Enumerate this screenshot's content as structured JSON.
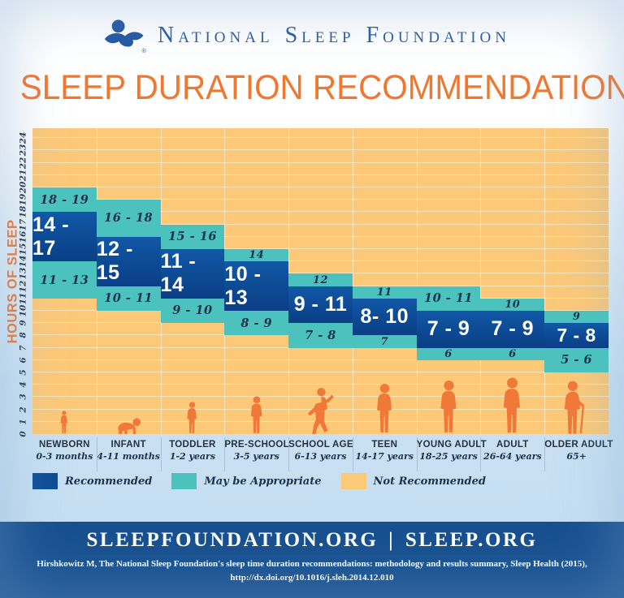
{
  "header": {
    "brand": "National Sleep Foundation",
    "registered_mark": "®",
    "logo_icon": "sleeping-figure-logo"
  },
  "title": "SLEEP DURATION RECOMMENDATIONS",
  "chart_data": {
    "type": "bar",
    "title": "SLEEP DURATION RECOMMENDATIONS",
    "ylabel": "HOURS OF SLEEP",
    "ylim": [
      0,
      24.8
    ],
    "grid": true,
    "hour_ticks": [
      0,
      1,
      2,
      3,
      4,
      5,
      6,
      7,
      8,
      9,
      10,
      11,
      12,
      13,
      14,
      15,
      16,
      17,
      18,
      19,
      20,
      21,
      22,
      23,
      24
    ],
    "legend_position": "bottom-left",
    "legend": [
      {
        "label": "Recommended",
        "color": "#0D4C96"
      },
      {
        "label": "May be Appropriate",
        "color": "#4BC2BD"
      },
      {
        "label": "Not Recommended",
        "color": "#FCC978"
      }
    ],
    "groups": [
      {
        "name": "NEWBORN",
        "age": "0-3 months",
        "figure": "newborn-baby",
        "recommended": {
          "label": "14 - 17",
          "span": [
            14,
            18
          ]
        },
        "may_upper": {
          "label": "18 - 19",
          "span": [
            18,
            20
          ]
        },
        "may_lower": {
          "label": "11 - 13",
          "span": [
            11,
            14
          ]
        }
      },
      {
        "name": "INFANT",
        "age": "4-11 months",
        "figure": "crawling-infant",
        "recommended": {
          "label": "12 - 15",
          "span": [
            12,
            16
          ]
        },
        "may_upper": {
          "label": "16 - 18",
          "span": [
            16,
            19
          ]
        },
        "may_lower": {
          "label": "10 - 11",
          "span": [
            10,
            12
          ]
        }
      },
      {
        "name": "TODDLER",
        "age": "1-2 years",
        "figure": "toddler-child",
        "recommended": {
          "label": "11 - 14",
          "span": [
            11,
            15
          ]
        },
        "may_upper": {
          "label": "15 - 16",
          "span": [
            15,
            17
          ]
        },
        "may_lower": {
          "label": "9 - 10",
          "span": [
            9,
            11
          ]
        }
      },
      {
        "name": "PRE-SCHOOL",
        "age": "3-5 years",
        "figure": "preschool-child",
        "recommended": {
          "label": "10 - 13",
          "span": [
            10,
            14
          ]
        },
        "may_upper": {
          "label": "14",
          "span": [
            14,
            15
          ]
        },
        "may_lower": {
          "label": "8 - 9",
          "span": [
            8,
            10
          ]
        }
      },
      {
        "name": "SCHOOL AGE",
        "age": "6-13 years",
        "figure": "school-age-child",
        "recommended": {
          "label": "9 - 11",
          "span": [
            9,
            12
          ]
        },
        "may_upper": {
          "label": "12",
          "span": [
            12,
            13
          ]
        },
        "may_lower": {
          "label": "7 - 8",
          "span": [
            7,
            9
          ]
        }
      },
      {
        "name": "TEEN",
        "age": "14-17 years",
        "figure": "teen",
        "recommended": {
          "label": "8- 10",
          "span": [
            8,
            11
          ]
        },
        "may_upper": {
          "label": "11",
          "span": [
            11,
            12
          ]
        },
        "may_lower": {
          "label": "7",
          "span": [
            7,
            8
          ]
        }
      },
      {
        "name": "YOUNG ADULT",
        "age": "18-25 years",
        "figure": "young-adult",
        "recommended": {
          "label": "7 - 9",
          "span": [
            7,
            10
          ]
        },
        "may_upper": {
          "label": "10 - 11",
          "span": [
            10,
            12
          ]
        },
        "may_lower": {
          "label": "6",
          "span": [
            6,
            7
          ]
        }
      },
      {
        "name": "ADULT",
        "age": "26-64 years",
        "figure": "adult",
        "recommended": {
          "label": "7 - 9",
          "span": [
            7,
            10
          ]
        },
        "may_upper": {
          "label": "10",
          "span": [
            10,
            11
          ]
        },
        "may_lower": {
          "label": "6",
          "span": [
            6,
            7
          ]
        }
      },
      {
        "name": "OLDER ADULT",
        "age": "65+",
        "figure": "older-adult-with-cane",
        "recommended": {
          "label": "7 - 8",
          "span": [
            7,
            9
          ]
        },
        "may_upper": {
          "label": "9",
          "span": [
            9,
            10
          ]
        },
        "may_lower": {
          "label": "5 - 6",
          "span": [
            5,
            7
          ]
        }
      }
    ]
  },
  "footer": {
    "sites": "SLEEPFOUNDATION.ORG | SLEEP.ORG",
    "citation_line1": "Hirshkowitz M, The National Sleep Foundation's sleep time duration recommendations: methodology and results summary, Sleep Health (2015),",
    "citation_line2": "http://dx.doi.org/10.1016/j.sleh.2014.12.010"
  },
  "colors": {
    "recommended": "#0D4C96",
    "may_be_appropriate": "#4BC2BD",
    "not_recommended": "#FCC978",
    "figure_orange": "#F0793A",
    "title": "#F2772E",
    "brand": "#2A5AA8",
    "footer_bg": "#17508F",
    "page_blue": "#C6DEF1"
  }
}
